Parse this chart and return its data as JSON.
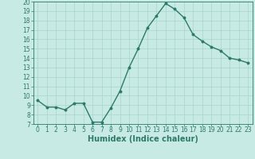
{
  "x": [
    0,
    1,
    2,
    3,
    4,
    5,
    6,
    7,
    8,
    9,
    10,
    11,
    12,
    13,
    14,
    15,
    16,
    17,
    18,
    19,
    20,
    21,
    22,
    23
  ],
  "y": [
    9.5,
    8.8,
    8.8,
    8.5,
    9.2,
    9.2,
    7.2,
    7.2,
    8.7,
    10.5,
    13.0,
    15.0,
    17.2,
    18.5,
    19.8,
    19.2,
    18.3,
    16.5,
    15.8,
    15.2,
    14.8,
    14.0,
    13.8,
    13.5
  ],
  "line_color": "#2d7a6b",
  "marker": "o",
  "marker_size": 1.8,
  "linewidth": 1.0,
  "bg_color": "#c8eae4",
  "grid_color": "#a8d4cc",
  "xlabel": "Humidex (Indice chaleur)",
  "xlabel_fontsize": 7,
  "xlim": [
    -0.5,
    23.5
  ],
  "ylim": [
    7,
    20
  ],
  "yticks": [
    7,
    8,
    9,
    10,
    11,
    12,
    13,
    14,
    15,
    16,
    17,
    18,
    19,
    20
  ],
  "xticks": [
    0,
    1,
    2,
    3,
    4,
    5,
    6,
    7,
    8,
    9,
    10,
    11,
    12,
    13,
    14,
    15,
    16,
    17,
    18,
    19,
    20,
    21,
    22,
    23
  ],
  "tick_fontsize": 5.5,
  "axis_color": "#2d7a6b"
}
